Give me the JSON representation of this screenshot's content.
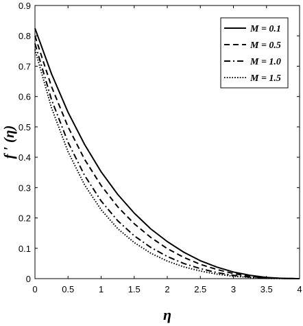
{
  "chart_data": {
    "type": "line",
    "xlabel": "η",
    "ylabel": "f ′ (η)",
    "xlim": [
      0,
      4
    ],
    "ylim": [
      0,
      0.9
    ],
    "xticks": [
      "0",
      "0.5",
      "1",
      "1.5",
      "2",
      "2.5",
      "3",
      "3.5",
      "4"
    ],
    "yticks": [
      "0",
      "0.1",
      "0.2",
      "0.3",
      "0.4",
      "0.5",
      "0.6",
      "0.7",
      "0.8",
      "0.9"
    ],
    "grid": false,
    "legend_position": "top-right",
    "series": [
      {
        "name": "M = 0.1",
        "style": "solid",
        "x": [
          0,
          0.25,
          0.5,
          0.75,
          1,
          1.25,
          1.5,
          1.75,
          2,
          2.25,
          2.5,
          2.75,
          3,
          3.25,
          3.5,
          3.75,
          4
        ],
        "y": [
          0.825,
          0.675,
          0.548,
          0.442,
          0.352,
          0.278,
          0.216,
          0.164,
          0.122,
          0.087,
          0.059,
          0.038,
          0.022,
          0.011,
          0.004,
          0.001,
          0
        ]
      },
      {
        "name": "M = 0.5",
        "style": "dashed",
        "x": [
          0,
          0.25,
          0.5,
          0.75,
          1,
          1.25,
          1.5,
          1.75,
          2,
          2.25,
          2.5,
          2.75,
          3,
          3.25,
          3.5,
          3.75,
          4
        ],
        "y": [
          0.8,
          0.633,
          0.5,
          0.393,
          0.307,
          0.237,
          0.181,
          0.136,
          0.099,
          0.07,
          0.047,
          0.03,
          0.017,
          0.008,
          0.003,
          0.001,
          0
        ]
      },
      {
        "name": "M = 1.0",
        "style": "dashdot",
        "x": [
          0,
          0.25,
          0.5,
          0.75,
          1,
          1.25,
          1.5,
          1.75,
          2,
          2.25,
          2.5,
          2.75,
          3,
          3.25,
          3.5,
          3.75,
          4
        ],
        "y": [
          0.775,
          0.59,
          0.449,
          0.34,
          0.256,
          0.191,
          0.141,
          0.103,
          0.073,
          0.05,
          0.033,
          0.02,
          0.011,
          0.005,
          0.002,
          0.0005,
          0
        ]
      },
      {
        "name": "M = 1.5",
        "style": "dotted",
        "x": [
          0,
          0.25,
          0.5,
          0.75,
          1,
          1.25,
          1.5,
          1.75,
          2,
          2.25,
          2.5,
          2.75,
          3,
          3.25,
          3.5,
          3.75,
          4
        ],
        "y": [
          0.755,
          0.563,
          0.418,
          0.309,
          0.227,
          0.165,
          0.119,
          0.084,
          0.058,
          0.039,
          0.025,
          0.015,
          0.008,
          0.004,
          0.001,
          0.0003,
          0
        ]
      }
    ]
  }
}
